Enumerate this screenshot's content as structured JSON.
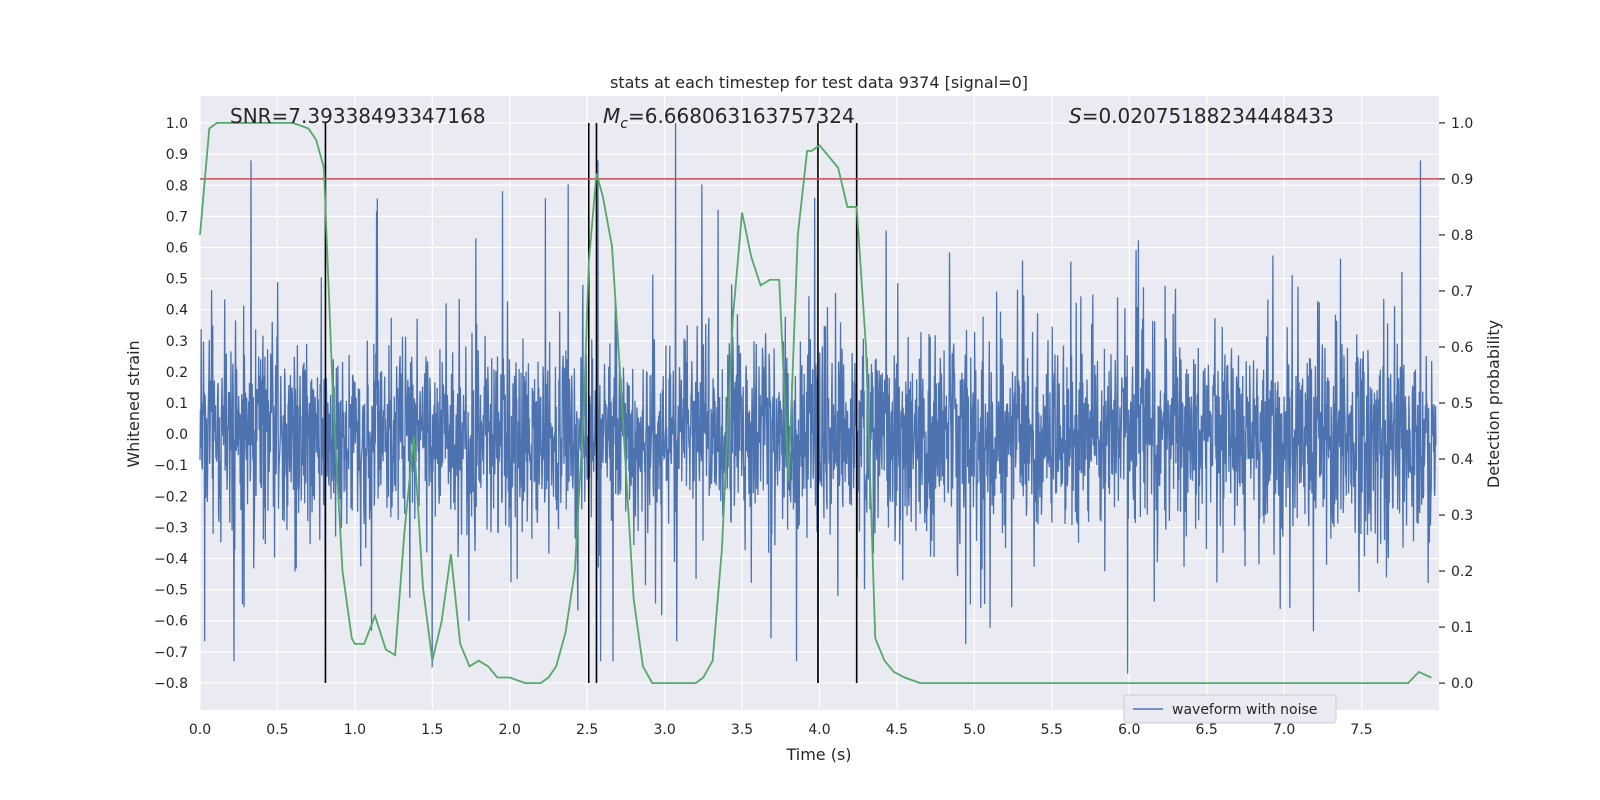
{
  "chart_data": {
    "type": "line",
    "title": "stats at each timestep for test data 9374 [signal=0]",
    "xlabel": "Time (s)",
    "ylabel": "Whitened strain",
    "y2label": "Detection probability",
    "xlim": [
      0.0,
      8.0
    ],
    "ylim": [
      -0.887,
      1.087
    ],
    "y2lim": [
      -0.048,
      1.048
    ],
    "xticks": [
      "0.0",
      "0.5",
      "1.0",
      "1.5",
      "2.0",
      "2.5",
      "3.0",
      "3.5",
      "4.0",
      "4.5",
      "5.0",
      "5.5",
      "6.0",
      "6.5",
      "7.0",
      "7.5"
    ],
    "xtick_values": [
      0.0,
      0.5,
      1.0,
      1.5,
      2.0,
      2.5,
      3.0,
      3.5,
      4.0,
      4.5,
      5.0,
      5.5,
      6.0,
      6.5,
      7.0,
      7.5
    ],
    "yticks": [
      "1.0",
      "0.9",
      "0.8",
      "0.7",
      "0.6",
      "0.5",
      "0.4",
      "0.3",
      "0.2",
      "0.1",
      "0.0",
      "−0.1",
      "−0.2",
      "−0.3",
      "−0.4",
      "−0.5",
      "−0.6",
      "−0.7",
      "−0.8"
    ],
    "ytick_values": [
      1.0,
      0.9,
      0.8,
      0.7,
      0.6,
      0.5,
      0.4,
      0.3,
      0.2,
      0.1,
      0.0,
      -0.1,
      -0.2,
      -0.3,
      -0.4,
      -0.5,
      -0.6,
      -0.7,
      -0.8
    ],
    "y2ticks": [
      "1.0",
      "0.9",
      "0.8",
      "0.7",
      "0.6",
      "0.5",
      "0.4",
      "0.3",
      "0.2",
      "0.1",
      "0.0"
    ],
    "y2tick_values": [
      1.0,
      0.9,
      0.8,
      0.7,
      0.6,
      0.5,
      0.4,
      0.3,
      0.2,
      0.1,
      0.0
    ],
    "grid": true,
    "legend_position": "lower-right",
    "annotations": {
      "snr": "SNR=7.39338493347168",
      "mc_symbol": "M",
      "mc_sub": "c",
      "mc_value": "=6.668063163757324",
      "s_symbol": "S",
      "s_value": "=0.02075188234448433"
    },
    "threshold": {
      "y2": 0.9,
      "color": "#c44e52"
    },
    "vertical_lines": [
      0.81,
      2.51,
      2.56,
      3.99,
      4.24
    ],
    "vertical_line_range": [
      -0.8,
      1.0
    ],
    "series": [
      {
        "name": "waveform with noise",
        "axis": "left",
        "color": "#4c72b0",
        "kind": "noise",
        "n_samples": 3200,
        "typical_amplitude": [
          -0.27,
          0.28
        ],
        "peak_envelope": [
          -0.78,
          1.0
        ],
        "notable_peaks": [
          {
            "x": 0.33,
            "y": 0.88
          },
          {
            "x": 2.57,
            "y": 0.88
          },
          {
            "x": 3.07,
            "y": 1.0
          },
          {
            "x": 3.97,
            "y": 0.76
          },
          {
            "x": 7.88,
            "y": 0.88
          },
          {
            "x": 0.22,
            "y": -0.73
          },
          {
            "x": 3.99,
            "y": -0.8
          },
          {
            "x": 5.99,
            "y": -0.77
          },
          {
            "x": 1.5,
            "y": -0.75
          }
        ]
      },
      {
        "name": "",
        "axis": "right",
        "color": "#55a868",
        "x": [
          0.0,
          0.06,
          0.11,
          0.2,
          0.3,
          0.4,
          0.5,
          0.6,
          0.7,
          0.75,
          0.8,
          0.86,
          0.92,
          0.98,
          1.0,
          1.06,
          1.13,
          1.2,
          1.26,
          1.32,
          1.38,
          1.44,
          1.5,
          1.56,
          1.62,
          1.68,
          1.74,
          1.8,
          1.86,
          1.92,
          2.0,
          2.1,
          2.2,
          2.25,
          2.3,
          2.36,
          2.42,
          2.48,
          2.51,
          2.56,
          2.6,
          2.66,
          2.72,
          2.8,
          2.86,
          2.92,
          3.0,
          3.1,
          3.2,
          3.25,
          3.31,
          3.37,
          3.44,
          3.5,
          3.56,
          3.62,
          3.68,
          3.74,
          3.8,
          3.86,
          3.92,
          3.95,
          4.0,
          4.06,
          4.12,
          4.18,
          4.24,
          4.3,
          4.36,
          4.42,
          4.48,
          4.55,
          4.65,
          4.8,
          5.0,
          5.2,
          5.4,
          5.5,
          6.0,
          6.5,
          7.0,
          7.5,
          7.8,
          7.87,
          7.95
        ],
        "y": [
          0.8,
          0.99,
          1.0,
          1.0,
          1.0,
          1.0,
          1.0,
          1.0,
          0.99,
          0.97,
          0.92,
          0.5,
          0.2,
          0.08,
          0.07,
          0.07,
          0.12,
          0.06,
          0.05,
          0.27,
          0.44,
          0.17,
          0.04,
          0.11,
          0.23,
          0.07,
          0.03,
          0.04,
          0.03,
          0.01,
          0.01,
          0.0,
          0.0,
          0.01,
          0.03,
          0.09,
          0.2,
          0.5,
          0.75,
          0.91,
          0.87,
          0.78,
          0.52,
          0.15,
          0.03,
          0.0,
          0.0,
          0.0,
          0.0,
          0.01,
          0.04,
          0.24,
          0.65,
          0.84,
          0.76,
          0.71,
          0.72,
          0.72,
          0.36,
          0.8,
          0.95,
          0.95,
          0.96,
          0.94,
          0.92,
          0.85,
          0.85,
          0.6,
          0.08,
          0.04,
          0.02,
          0.01,
          0.0,
          0.0,
          0.0,
          0.0,
          0.0,
          0.0,
          0.0,
          0.0,
          0.0,
          0.0,
          0.0,
          0.02,
          0.01
        ]
      }
    ]
  }
}
